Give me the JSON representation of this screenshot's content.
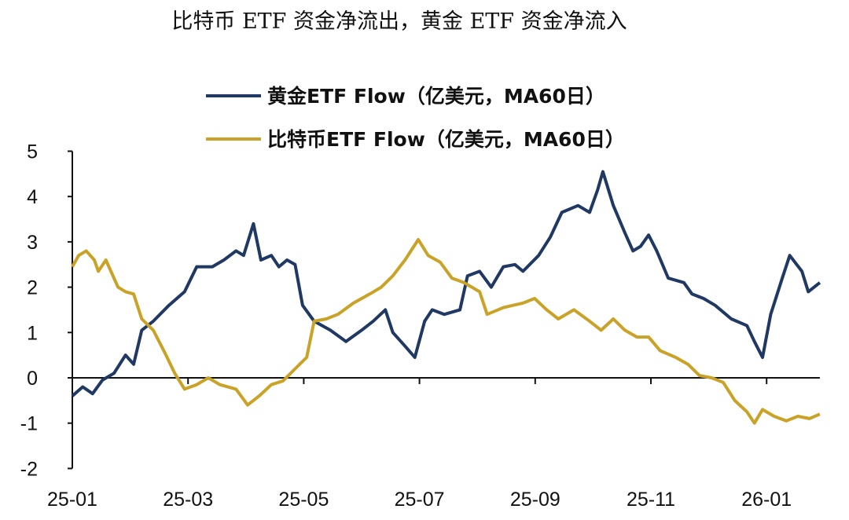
{
  "chart_data": {
    "type": "line",
    "title": "比特币 ETF 资金净流出，黄金 ETF 资金净流入",
    "xlabel": "",
    "ylabel": "",
    "x_unit": "months since 25-01",
    "xlim": [
      0,
      12.92
    ],
    "ylim": [
      -2,
      5
    ],
    "yticks": [
      5,
      4,
      3,
      2,
      1,
      0,
      -1,
      -2
    ],
    "xticks": [
      {
        "m": 0,
        "label": "25-01"
      },
      {
        "m": 2,
        "label": "25-03"
      },
      {
        "m": 4,
        "label": "25-05"
      },
      {
        "m": 6,
        "label": "25-07"
      },
      {
        "m": 8,
        "label": "25-09"
      },
      {
        "m": 10,
        "label": "25-11"
      },
      {
        "m": 12,
        "label": "26-01"
      }
    ],
    "legend_position": "top-center",
    "series": [
      {
        "name": "黄金ETF Flow（亿美元，MA60日）",
        "color": "#1f3864",
        "x": [
          0,
          0.18,
          0.35,
          0.52,
          0.72,
          0.92,
          1.06,
          1.2,
          1.4,
          1.67,
          1.94,
          2.15,
          2.42,
          2.62,
          2.83,
          2.96,
          3.13,
          3.26,
          3.44,
          3.57,
          3.71,
          3.85,
          3.98,
          4.18,
          4.46,
          4.73,
          5.0,
          5.2,
          5.41,
          5.54,
          5.75,
          5.92,
          6.09,
          6.22,
          6.43,
          6.7,
          6.83,
          7.04,
          7.24,
          7.45,
          7.65,
          7.79,
          8.06,
          8.26,
          8.46,
          8.74,
          8.94,
          9.08,
          9.17,
          9.35,
          9.55,
          9.69,
          9.82,
          9.96,
          10.1,
          10.3,
          10.57,
          10.71,
          10.91,
          11.11,
          11.39,
          11.66,
          11.79,
          11.93,
          12.07,
          12.27,
          12.4,
          12.61,
          12.72,
          12.92
        ],
        "y": [
          -0.4,
          -0.2,
          -0.35,
          -0.05,
          0.1,
          0.5,
          0.3,
          1.05,
          1.25,
          1.6,
          1.9,
          2.45,
          2.45,
          2.6,
          2.8,
          2.7,
          3.4,
          2.6,
          2.7,
          2.45,
          2.6,
          2.5,
          1.6,
          1.25,
          1.05,
          0.8,
          1.05,
          1.25,
          1.5,
          1.0,
          0.7,
          0.45,
          1.25,
          1.5,
          1.4,
          1.5,
          2.25,
          2.35,
          2.0,
          2.45,
          2.5,
          2.35,
          2.7,
          3.1,
          3.65,
          3.8,
          3.65,
          4.15,
          4.55,
          3.8,
          3.2,
          2.8,
          2.9,
          3.15,
          2.8,
          2.2,
          2.1,
          1.85,
          1.75,
          1.6,
          1.3,
          1.15,
          0.8,
          0.45,
          1.4,
          2.2,
          2.7,
          2.35,
          1.9,
          2.1
        ]
      },
      {
        "name": "比特币ETF Flow（亿美元，MA60日）",
        "color": "#c9a227",
        "x": [
          0,
          0.11,
          0.24,
          0.38,
          0.45,
          0.58,
          0.79,
          0.92,
          1.06,
          1.2,
          1.4,
          1.6,
          1.77,
          1.94,
          2.15,
          2.35,
          2.55,
          2.83,
          3.03,
          3.23,
          3.44,
          3.64,
          3.85,
          4.05,
          4.18,
          4.39,
          4.59,
          4.86,
          5.14,
          5.34,
          5.54,
          5.75,
          5.98,
          6.15,
          6.36,
          6.56,
          6.77,
          7.04,
          7.17,
          7.45,
          7.79,
          7.99,
          8.2,
          8.4,
          8.67,
          8.94,
          9.14,
          9.35,
          9.55,
          9.76,
          9.96,
          10.16,
          10.43,
          10.64,
          10.84,
          11.05,
          11.25,
          11.45,
          11.66,
          11.79,
          11.93,
          12.13,
          12.34,
          12.54,
          12.74,
          12.92
        ],
        "y": [
          2.45,
          2.7,
          2.8,
          2.6,
          2.35,
          2.6,
          2.0,
          1.9,
          1.85,
          1.3,
          1.05,
          0.55,
          0.1,
          -0.25,
          -0.15,
          0.0,
          -0.15,
          -0.25,
          -0.6,
          -0.4,
          -0.15,
          -0.07,
          0.2,
          0.45,
          1.25,
          1.3,
          1.4,
          1.65,
          1.85,
          2.0,
          2.25,
          2.6,
          3.05,
          2.7,
          2.55,
          2.2,
          2.1,
          1.9,
          1.4,
          1.55,
          1.65,
          1.75,
          1.5,
          1.3,
          1.5,
          1.25,
          1.05,
          1.3,
          1.05,
          0.9,
          0.9,
          0.6,
          0.45,
          0.3,
          0.05,
          0.0,
          -0.1,
          -0.5,
          -0.75,
          -1.0,
          -0.7,
          -0.85,
          -0.95,
          -0.85,
          -0.9,
          -0.8
        ]
      }
    ]
  }
}
